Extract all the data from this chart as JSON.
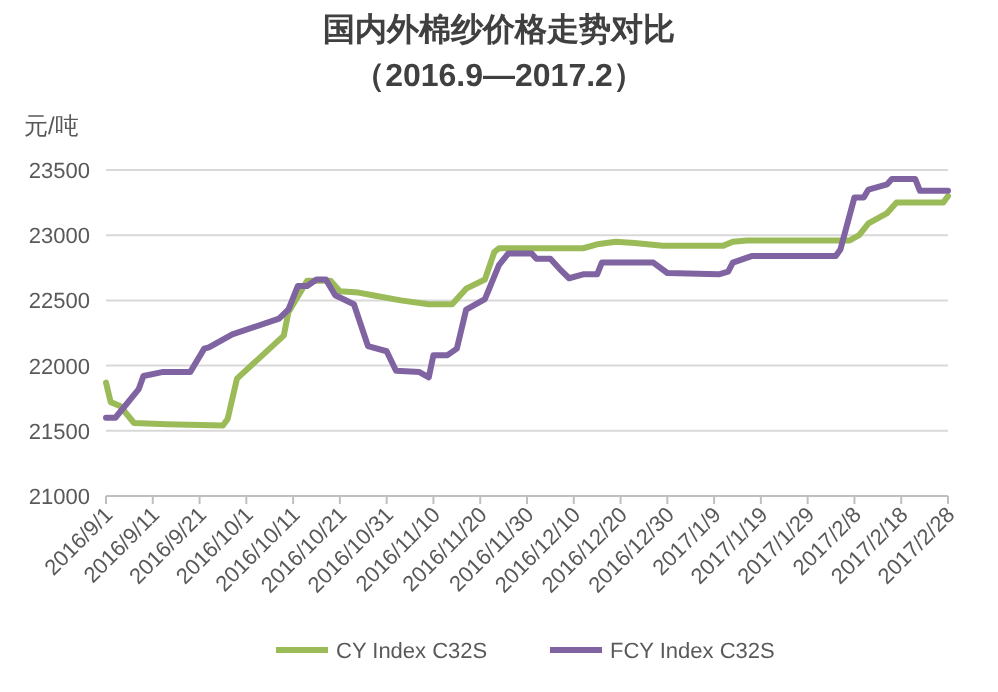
{
  "chart_data": {
    "type": "line",
    "title": "国内外棉纱价格走势对比",
    "subtitle": "（2016.9—2017.2）",
    "ylabel": "元/吨",
    "xlim": [
      "2016-09-01",
      "2017-02-28"
    ],
    "xticks": [
      {
        "value": "2016-09-01",
        "label": "2016/9/1"
      },
      {
        "value": "2016-09-11",
        "label": "2016/9/11"
      },
      {
        "value": "2016-09-21",
        "label": "2016/9/21"
      },
      {
        "value": "2016-10-01",
        "label": "2016/10/1"
      },
      {
        "value": "2016-10-11",
        "label": "2016/10/11"
      },
      {
        "value": "2016-10-21",
        "label": "2016/10/21"
      },
      {
        "value": "2016-10-31",
        "label": "2016/10/31"
      },
      {
        "value": "2016-11-10",
        "label": "2016/11/10"
      },
      {
        "value": "2016-11-20",
        "label": "2016/11/20"
      },
      {
        "value": "2016-11-30",
        "label": "2016/11/30"
      },
      {
        "value": "2016-12-10",
        "label": "2016/12/10"
      },
      {
        "value": "2016-12-20",
        "label": "2016/12/20"
      },
      {
        "value": "2016-12-30",
        "label": "2016/12/30"
      },
      {
        "value": "2017-01-09",
        "label": "2017/1/9"
      },
      {
        "value": "2017-01-19",
        "label": "2017/1/19"
      },
      {
        "value": "2017-01-29",
        "label": "2017/1/29"
      },
      {
        "value": "2017-02-08",
        "label": "2017/2/8"
      },
      {
        "value": "2017-02-18",
        "label": "2017/2/18"
      },
      {
        "value": "2017-02-28",
        "label": "2017/2/28"
      }
    ],
    "ylim": [
      21000,
      23500
    ],
    "yticks": [
      21000,
      21500,
      22000,
      22500,
      23000,
      23500
    ],
    "grid": "y",
    "legend": "bottom",
    "marker": "none",
    "line_style": "solid",
    "series": [
      {
        "name": "CY Index C32S",
        "color": "#9bbb59",
        "x": [
          "2016-09-01",
          "2016-09-02",
          "2016-09-04",
          "2016-09-07",
          "2016-09-14",
          "2016-09-26",
          "2016-09-27",
          "2016-09-29",
          "2016-10-09",
          "2016-10-10",
          "2016-10-13",
          "2016-10-14",
          "2016-10-19",
          "2016-10-21",
          "2016-10-25",
          "2016-10-28",
          "2016-11-03",
          "2016-11-09",
          "2016-11-14",
          "2016-11-17",
          "2016-11-21",
          "2016-11-23",
          "2016-11-24",
          "2016-12-02",
          "2016-12-12",
          "2016-12-15",
          "2016-12-19",
          "2016-12-23",
          "2016-12-29",
          "2017-01-11",
          "2017-01-13",
          "2017-01-16",
          "2017-02-07",
          "2017-02-09",
          "2017-02-11",
          "2017-02-15",
          "2017-02-17",
          "2017-02-27",
          "2017-02-28"
        ],
        "values": [
          21870,
          21720,
          21690,
          21560,
          21550,
          21540,
          21590,
          21900,
          22230,
          22410,
          22590,
          22650,
          22650,
          22570,
          22560,
          22540,
          22500,
          22470,
          22470,
          22590,
          22660,
          22870,
          22900,
          22900,
          22900,
          22930,
          22950,
          22940,
          22920,
          22920,
          22950,
          22960,
          22960,
          23000,
          23090,
          23170,
          23250,
          23250,
          23300
        ]
      },
      {
        "name": "FCY Index C32S",
        "color": "#8064a2",
        "x": [
          "2016-09-01",
          "2016-09-03",
          "2016-09-08",
          "2016-09-09",
          "2016-09-13",
          "2016-09-19",
          "2016-09-22",
          "2016-09-23",
          "2016-09-28",
          "2016-10-08",
          "2016-10-10",
          "2016-10-12",
          "2016-10-14",
          "2016-10-16",
          "2016-10-18",
          "2016-10-20",
          "2016-10-24",
          "2016-10-27",
          "2016-10-31",
          "2016-11-02",
          "2016-11-07",
          "2016-11-09",
          "2016-11-10",
          "2016-11-13",
          "2016-11-15",
          "2016-11-17",
          "2016-11-21",
          "2016-11-24",
          "2016-11-26",
          "2016-12-01",
          "2016-12-02",
          "2016-12-05",
          "2016-12-07",
          "2016-12-09",
          "2016-12-12",
          "2016-12-15",
          "2016-12-16",
          "2016-12-27",
          "2016-12-30",
          "2017-01-10",
          "2017-01-12",
          "2017-01-13",
          "2017-01-17",
          "2017-02-04",
          "2017-02-05",
          "2017-02-08",
          "2017-02-10",
          "2017-02-11",
          "2017-02-15",
          "2017-02-16",
          "2017-02-21",
          "2017-02-22",
          "2017-02-28"
        ],
        "values": [
          21600,
          21600,
          21820,
          21920,
          21950,
          21950,
          22130,
          22140,
          22240,
          22360,
          22430,
          22610,
          22610,
          22660,
          22660,
          22540,
          22470,
          22150,
          22110,
          21960,
          21950,
          21910,
          22080,
          22080,
          22130,
          22430,
          22510,
          22770,
          22860,
          22860,
          22820,
          22820,
          22740,
          22670,
          22700,
          22700,
          22790,
          22790,
          22710,
          22700,
          22720,
          22790,
          22840,
          22840,
          22890,
          23290,
          23290,
          23350,
          23390,
          23430,
          23430,
          23340,
          23340
        ]
      }
    ]
  }
}
